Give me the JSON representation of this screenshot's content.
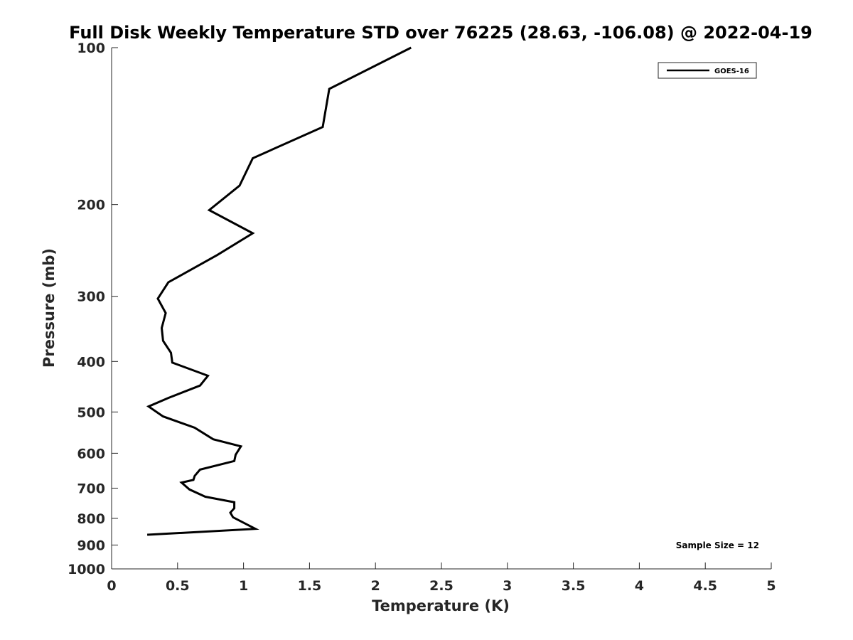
{
  "chart_data": {
    "type": "line",
    "title": "Full Disk Weekly Temperature STD over 76225 (28.63, -106.08) @ 2022-04-19",
    "xlabel": "Temperature (K)",
    "ylabel": "Pressure (mb)",
    "xlim": [
      0,
      5
    ],
    "ylim": [
      100,
      1000
    ],
    "y_scale": "log",
    "y_reversed": true,
    "x_ticks": [
      "0",
      "0.5",
      "1",
      "1.5",
      "2",
      "2.5",
      "3",
      "3.5",
      "4",
      "4.5",
      "5"
    ],
    "y_ticks": [
      "100",
      "200",
      "300",
      "400",
      "500",
      "600",
      "700",
      "800",
      "900",
      "1000"
    ],
    "grid": false,
    "legend": {
      "position": "top-right",
      "entries": [
        "GOES-16"
      ]
    },
    "annotation": "Sample Size = 12",
    "series": [
      {
        "name": "GOES-16",
        "color": "#000000",
        "x": [
          2.27,
          1.65,
          1.6,
          1.07,
          0.97,
          0.74,
          1.07,
          0.8,
          0.43,
          0.35,
          0.41,
          0.38,
          0.39,
          0.45,
          0.46,
          0.73,
          0.67,
          0.43,
          0.28,
          0.39,
          0.63,
          0.77,
          0.98,
          0.94,
          0.93,
          0.67,
          0.63,
          0.62,
          0.53,
          0.59,
          0.71,
          0.93,
          0.93,
          0.9,
          0.92,
          1.09,
          0.27
        ],
        "y": [
          100,
          120,
          142,
          163,
          184,
          205,
          227,
          250,
          282,
          303,
          323,
          345,
          365,
          385,
          402,
          426,
          445,
          470,
          488,
          510,
          536,
          564,
          582,
          604,
          621,
          645,
          663,
          675,
          683,
          704,
          727,
          745,
          765,
          780,
          796,
          838,
          860
        ]
      }
    ]
  }
}
